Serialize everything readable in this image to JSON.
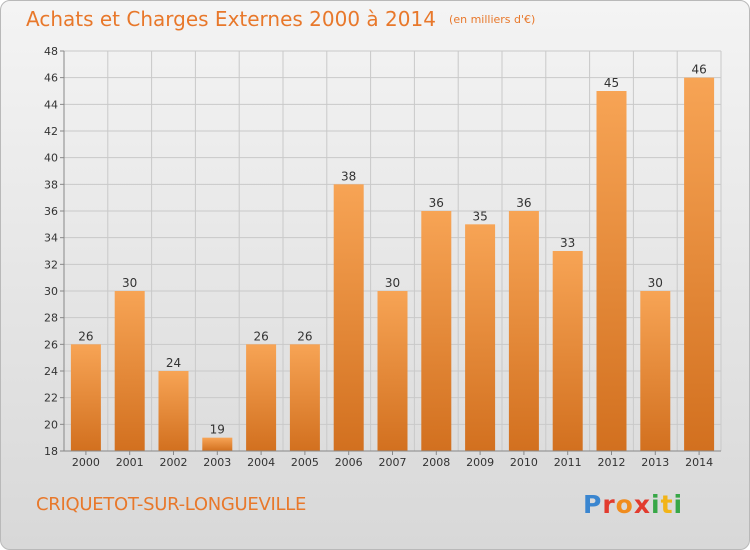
{
  "title": {
    "main": "Achats et Charges Externes 2000 à 2014",
    "unit": "(en milliers d'€)"
  },
  "commune": "CRIQUETOT-SUR-LONGUEVILLE",
  "logo": {
    "letters": [
      "P",
      "r",
      "o",
      "x",
      "i",
      "t",
      "i"
    ]
  },
  "colors": {
    "title": "#e8782b",
    "bar_top": "#f7a455",
    "bar_bottom": "#d2701f",
    "grid": "#c9c9c9",
    "axis": "#888888"
  },
  "chart_data": {
    "type": "bar",
    "categories": [
      "2000",
      "2001",
      "2002",
      "2003",
      "2004",
      "2005",
      "2006",
      "2007",
      "2008",
      "2009",
      "2010",
      "2011",
      "2012",
      "2013",
      "2014"
    ],
    "values": [
      26,
      30,
      24,
      19,
      26,
      26,
      38,
      30,
      36,
      35,
      36,
      33,
      45,
      30,
      46
    ],
    "ylim": [
      18,
      48
    ],
    "yticks": [
      18,
      20,
      22,
      24,
      26,
      28,
      30,
      32,
      34,
      36,
      38,
      40,
      42,
      44,
      46,
      48
    ],
    "grid": true,
    "legend": "none"
  }
}
